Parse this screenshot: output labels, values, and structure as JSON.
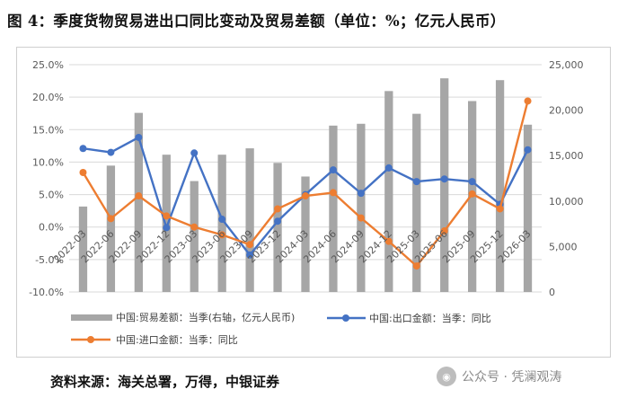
{
  "title": "图 4：季度货物贸易进出口同比变动及贸易差额（单位：%；亿元人民币）",
  "source": "资料来源：海关总署，万得，中银证券",
  "watermark": "公众号 · 凭澜观涛",
  "chart_data": {
    "type": "bar+line",
    "categories": [
      "2022-03",
      "2022-06",
      "2022-09",
      "2022-12",
      "2023-03",
      "2023-06",
      "2023-09",
      "2023-12",
      "2024-03",
      "2024-06",
      "2024-09",
      "2024-12",
      "2025-03",
      "2025-06",
      "2025-09",
      "2025-12",
      "2026-03"
    ],
    "left_axis": {
      "ticks": [
        "25.0%",
        "20.0%",
        "15.0%",
        "10.0%",
        "5.0%",
        "0.0%",
        "-5.0%",
        "-10.0%"
      ],
      "ylim": [
        -10,
        25
      ]
    },
    "right_axis": {
      "ticks": [
        "25,000",
        "20,000",
        "15,000",
        "10,000",
        "5,000",
        "0"
      ],
      "ylim": [
        0,
        25000
      ]
    },
    "series": [
      {
        "name": "中国:贸易差额：当季(右轴，亿元人民币)",
        "type": "bar",
        "axis": "right",
        "color": "#a6a6a6",
        "values": [
          9400,
          13900,
          19700,
          15100,
          12200,
          15100,
          15800,
          14200,
          12700,
          18300,
          18500,
          22100,
          19600,
          23500,
          21000,
          23300,
          18400
        ]
      },
      {
        "name": "中国:出口金额：当季：同比",
        "type": "line",
        "axis": "left",
        "color": "#4472c4",
        "values": [
          12.1,
          11.5,
          13.8,
          -0.1,
          11.4,
          1.2,
          -4.3,
          0.9,
          5.0,
          8.8,
          5.2,
          9.1,
          7.0,
          7.4,
          7.0,
          3.5,
          11.9
        ]
      },
      {
        "name": "中国:进口金额：当季：同比",
        "type": "line",
        "axis": "left",
        "color": "#ed7d31",
        "values": [
          8.4,
          1.3,
          4.8,
          1.7,
          0.0,
          -1.2,
          -2.7,
          2.8,
          4.8,
          5.3,
          1.4,
          -2.2,
          -6.0,
          -0.6,
          5.1,
          2.8,
          19.4
        ]
      }
    ],
    "grid": "horizontal",
    "legend": "bottom"
  }
}
